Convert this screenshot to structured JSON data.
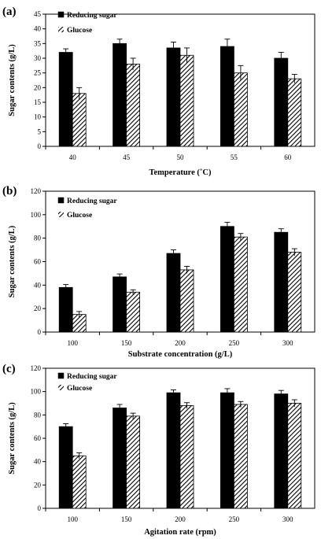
{
  "figure": {
    "title": ""
  },
  "legend_icons": [
    "solid-black-square",
    "diagonal-hatch-square"
  ],
  "chart_data": [
    {
      "type": "bar",
      "panel_label": "(a)",
      "categories": [
        "40",
        "45",
        "50",
        "55",
        "60"
      ],
      "xlabel": "Temperature (˚C)",
      "ylabel": "Sugar contents (g/L)",
      "ylim": [
        0,
        45
      ],
      "yticks": [
        0,
        5,
        10,
        15,
        20,
        25,
        30,
        35,
        40,
        45
      ],
      "grid": false,
      "legend_placement": "top-left",
      "series": [
        {
          "name": "Reducing sugar",
          "fill": "solid",
          "color": "#000000",
          "values": [
            32,
            35,
            33.5,
            34,
            30
          ],
          "errors": [
            1.2,
            1.5,
            2,
            2.5,
            2
          ]
        },
        {
          "name": "Glucose",
          "fill": "hatched",
          "color": "#000000",
          "values": [
            18,
            28,
            31,
            25,
            23
          ],
          "errors": [
            2,
            2,
            2.5,
            2.5,
            1.5
          ]
        }
      ]
    },
    {
      "type": "bar",
      "panel_label": "(b)",
      "categories": [
        "100",
        "150",
        "200",
        "250",
        "300"
      ],
      "xlabel": "Substrate concentration (g/L)",
      "ylabel": "Sugar contents (g/L)",
      "ylim": [
        0,
        120
      ],
      "yticks": [
        0,
        20,
        40,
        60,
        80,
        100,
        120
      ],
      "grid": false,
      "legend_placement": "top-left",
      "series": [
        {
          "name": "Reducing sugar",
          "fill": "solid",
          "color": "#000000",
          "values": [
            38,
            47,
            67,
            90,
            85
          ],
          "errors": [
            2.5,
            2.5,
            3,
            3.5,
            3
          ]
        },
        {
          "name": "Glucose",
          "fill": "hatched",
          "color": "#000000",
          "values": [
            15,
            34,
            53,
            81,
            68
          ],
          "errors": [
            2.5,
            2,
            3,
            3,
            3
          ]
        }
      ]
    },
    {
      "type": "bar",
      "panel_label": "(c)",
      "categories": [
        "100",
        "150",
        "200",
        "250",
        "300"
      ],
      "xlabel": "Agitation rate (rpm)",
      "ylabel": "Sugar contents (g/L)",
      "ylim": [
        0,
        120
      ],
      "yticks": [
        0,
        20,
        40,
        60,
        80,
        100,
        120
      ],
      "grid": false,
      "legend_placement": "top-left",
      "series": [
        {
          "name": "Reducing sugar",
          "fill": "solid",
          "color": "#000000",
          "values": [
            70,
            86,
            99,
            99,
            98
          ],
          "errors": [
            2.5,
            3,
            2.5,
            3.5,
            3
          ]
        },
        {
          "name": "Glucose",
          "fill": "hatched",
          "color": "#000000",
          "values": [
            45,
            79,
            88,
            89,
            90
          ],
          "errors": [
            2.5,
            2.5,
            2.5,
            2.5,
            3
          ]
        }
      ]
    }
  ]
}
